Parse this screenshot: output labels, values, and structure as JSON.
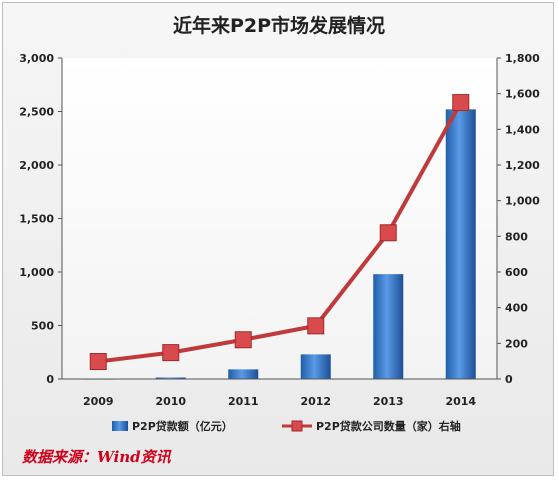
{
  "chart_data": {
    "type": "bar",
    "title": "近年来P2P市场发展情况",
    "categories": [
      "2009",
      "2010",
      "2011",
      "2012",
      "2013",
      "2014"
    ],
    "series": [
      {
        "name": "P2P贷款额（亿元）",
        "type": "bar",
        "axis": "left",
        "color": "#3f7fd1",
        "values": [
          2,
          14,
          90,
          230,
          980,
          2520
        ]
      },
      {
        "name": "P2P贷款公司数量（家）右轴",
        "type": "line",
        "axis": "right",
        "color": "#c0393b",
        "values": [
          98,
          148,
          220,
          298,
          820,
          1550
        ]
      }
    ],
    "ylim": [
      0,
      3000
    ],
    "yticks": [
      "0",
      "500",
      "1,000",
      "1,500",
      "2,000",
      "2,500",
      "3,000"
    ],
    "y2lim": [
      0,
      1800
    ],
    "y2ticks": [
      "0",
      "200",
      "400",
      "600",
      "800",
      "1,000",
      "1,200",
      "1,400",
      "1,600",
      "1,800"
    ],
    "grid": false,
    "legend_placement": "bottom"
  },
  "source_text": "数据来源：Wind资讯"
}
